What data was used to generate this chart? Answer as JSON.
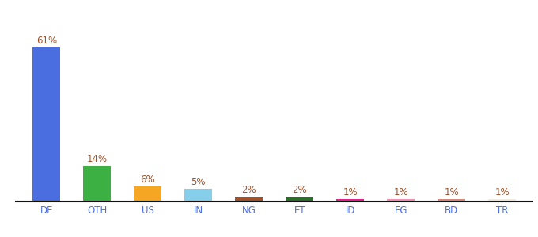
{
  "categories": [
    "DE",
    "OTH",
    "US",
    "IN",
    "NG",
    "ET",
    "ID",
    "EG",
    "BD",
    "TR"
  ],
  "values": [
    61,
    14,
    6,
    5,
    2,
    2,
    1,
    1,
    1,
    1
  ],
  "labels": [
    "61%",
    "14%",
    "6%",
    "5%",
    "2%",
    "2%",
    "1%",
    "1%",
    "1%",
    "1%"
  ],
  "bar_colors": [
    "#4a6ee0",
    "#3cb043",
    "#f5a623",
    "#87ceeb",
    "#a0522d",
    "#2d6e2d",
    "#e91e8c",
    "#f48fb1",
    "#d9897a",
    "#f0ece0"
  ],
  "background_color": "#ffffff",
  "label_color": "#a0522d",
  "ylim": [
    0,
    75
  ],
  "bar_width": 0.55,
  "figsize": [
    6.8,
    3.0
  ],
  "dpi": 100,
  "label_fontsize": 8.5,
  "tick_fontsize": 8.5,
  "tick_color": "#4a6ee0"
}
